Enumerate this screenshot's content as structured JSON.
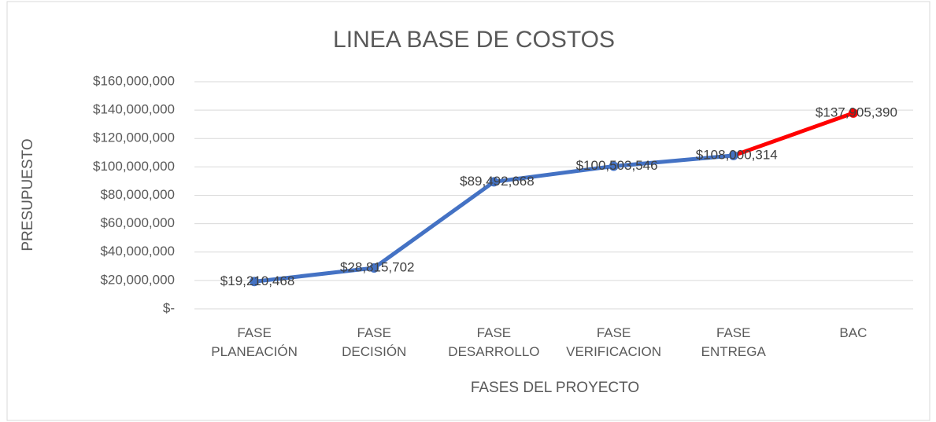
{
  "chart_data": {
    "type": "line",
    "title": "LINEA BASE DE COSTOS",
    "x_label": "FASES DEL PROYECTO",
    "y_label": "PRESUPUESTO",
    "categories": [
      "FASE PLANEACIÓN",
      "FASE DECISIÓN",
      "FASE DESARROLLO",
      "FASE VERIFICACION",
      "FASE ENTREGA",
      "BAC"
    ],
    "series": [
      {
        "color": "#4472c4",
        "point_colors": [
          "#4472c4",
          "#4472c4",
          "#4472c4",
          "#4472c4",
          "#4472c4",
          "#ff0000"
        ],
        "values": [
          19210468,
          28815702,
          89492668,
          100503546,
          108000314,
          137905390
        ],
        "value_labels": [
          "$19,210,468",
          "$28,815,702",
          "$89,492,668",
          "$100,503,546",
          "$108,000,314",
          "$137,905,390"
        ]
      }
    ],
    "ylim": [
      0,
      160000000
    ],
    "yticks": [
      {
        "value": 0,
        "label": "$-"
      },
      {
        "value": 20000000,
        "label": "$20,000,000"
      },
      {
        "value": 40000000,
        "label": "$40,000,000"
      },
      {
        "value": 60000000,
        "label": "$60,000,000"
      },
      {
        "value": 80000000,
        "label": "$80,000,000"
      },
      {
        "value": 100000000,
        "label": "$100,000,000"
      },
      {
        "value": 120000000,
        "label": "$120,000,000"
      },
      {
        "value": 140000000,
        "label": "$140,000,000"
      },
      {
        "value": 160000000,
        "label": "$160,000,000"
      }
    ],
    "grid": true
  }
}
